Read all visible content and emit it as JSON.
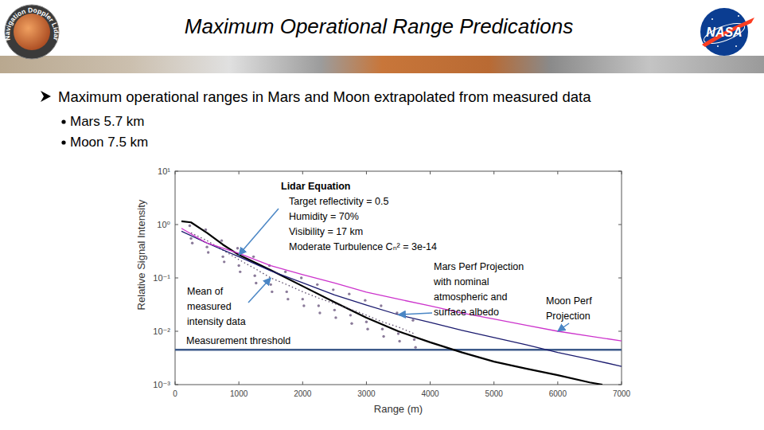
{
  "header": {
    "title": "Maximum Operational Range Predications",
    "logo_left": "Navigation Doppler Lidar",
    "logo_right": "NASA"
  },
  "bullets": {
    "main": "Maximum operational ranges in Mars and Moon extrapolated from measured data",
    "items": [
      "Mars 5.7 km",
      "Moon 7.5 km"
    ]
  },
  "chart_data": {
    "type": "line",
    "xlabel": "Range (m)",
    "ylabel": "Relative Signal Intensity",
    "log": "y",
    "grid": false,
    "xlim": [
      0,
      7000
    ],
    "xticks": [
      0,
      1000,
      2000,
      3000,
      4000,
      5000,
      6000,
      7000
    ],
    "ylim": [
      0.001,
      10
    ],
    "yticks": [
      {
        "value": 0.001,
        "label": "10⁻³"
      },
      {
        "value": 0.01,
        "label": "10⁻²"
      },
      {
        "value": 0.1,
        "label": "10⁻¹"
      },
      {
        "value": 1,
        "label": "10⁰"
      },
      {
        "value": 10,
        "label": "10¹"
      }
    ],
    "threshold": {
      "label": "Measurement threshold",
      "value": 0.0045,
      "color": "#3d5a8a"
    },
    "series": [
      {
        "name": "Lidar Equation",
        "notes": [
          "Target reflectivity = 0.5",
          "Humidity = 70%",
          "Visibility = 17 km",
          "Moderate Turbulence Cₙ² = 3e-14"
        ],
        "color": "#000000",
        "x": [
          100,
          250,
          500,
          750,
          1000,
          1500,
          2000,
          2500,
          3000,
          3500,
          4000,
          4500,
          5000,
          5500,
          6000,
          6500,
          6700
        ],
        "values": [
          1.15,
          1.1,
          0.7,
          0.42,
          0.27,
          0.14,
          0.07,
          0.035,
          0.018,
          0.01,
          0.0062,
          0.004,
          0.0027,
          0.002,
          0.0015,
          0.0011,
          0.001
        ]
      },
      {
        "name": "Mean of measured intensity data",
        "color": "#5a4a6a",
        "line_style": "dotted",
        "x": [
          250,
          500,
          750,
          1000,
          1250,
          1500,
          1750,
          2000,
          2250,
          2500,
          2750,
          3000,
          3250,
          3500,
          3750
        ],
        "values": [
          0.7,
          0.5,
          0.33,
          0.22,
          0.15,
          0.1,
          0.075,
          0.055,
          0.042,
          0.033,
          0.026,
          0.02,
          0.015,
          0.012,
          0.009
        ]
      },
      {
        "type": "scatter",
        "color": "#8a7a99",
        "marker": "circle",
        "x": [
          230,
          250,
          270,
          480,
          500,
          520,
          730,
          750,
          770,
          980,
          1000,
          1020,
          1230,
          1250,
          1270,
          1480,
          1500,
          1520,
          1730,
          1750,
          1770,
          1980,
          2000,
          2020,
          2230,
          2250,
          2270,
          2480,
          2500,
          2520,
          2730,
          2750,
          2770,
          2980,
          3000,
          3020,
          3230,
          3250,
          3270,
          3480,
          3500,
          3520,
          3730,
          3750,
          3770
        ],
        "values": [
          0.95,
          0.55,
          0.45,
          0.8,
          0.38,
          0.3,
          0.5,
          0.25,
          0.2,
          0.36,
          0.17,
          0.13,
          0.25,
          0.11,
          0.08,
          0.17,
          0.075,
          0.055,
          0.13,
          0.055,
          0.04,
          0.1,
          0.04,
          0.03,
          0.075,
          0.03,
          0.022,
          0.06,
          0.025,
          0.018,
          0.05,
          0.02,
          0.014,
          0.038,
          0.015,
          0.011,
          0.03,
          0.011,
          0.008,
          0.022,
          0.009,
          0.0065,
          0.016,
          0.007,
          0.005
        ]
      },
      {
        "name": "Mars Perf Projection with nominal atmospheric and surface albedo",
        "color": "#1a1a6e",
        "x": [
          100,
          500,
          1000,
          1500,
          2000,
          2500,
          3000,
          3500,
          4000,
          4500,
          5000,
          5500,
          6000,
          6500,
          7000
        ],
        "values": [
          0.75,
          0.45,
          0.25,
          0.136,
          0.081,
          0.048,
          0.031,
          0.0204,
          0.0146,
          0.0104,
          0.0076,
          0.0056,
          0.004,
          0.003,
          0.0022
        ]
      },
      {
        "name": "Moon Perf Projection",
        "color": "#cc33cc",
        "x": [
          100,
          500,
          1000,
          1500,
          2000,
          2500,
          3000,
          3500,
          4000,
          4500,
          5000,
          5500,
          6000,
          6500,
          7000
        ],
        "values": [
          0.85,
          0.45,
          0.29,
          0.17,
          0.115,
          0.08,
          0.054,
          0.04,
          0.03,
          0.022,
          0.017,
          0.013,
          0.01,
          0.0081,
          0.0066
        ]
      }
    ]
  }
}
